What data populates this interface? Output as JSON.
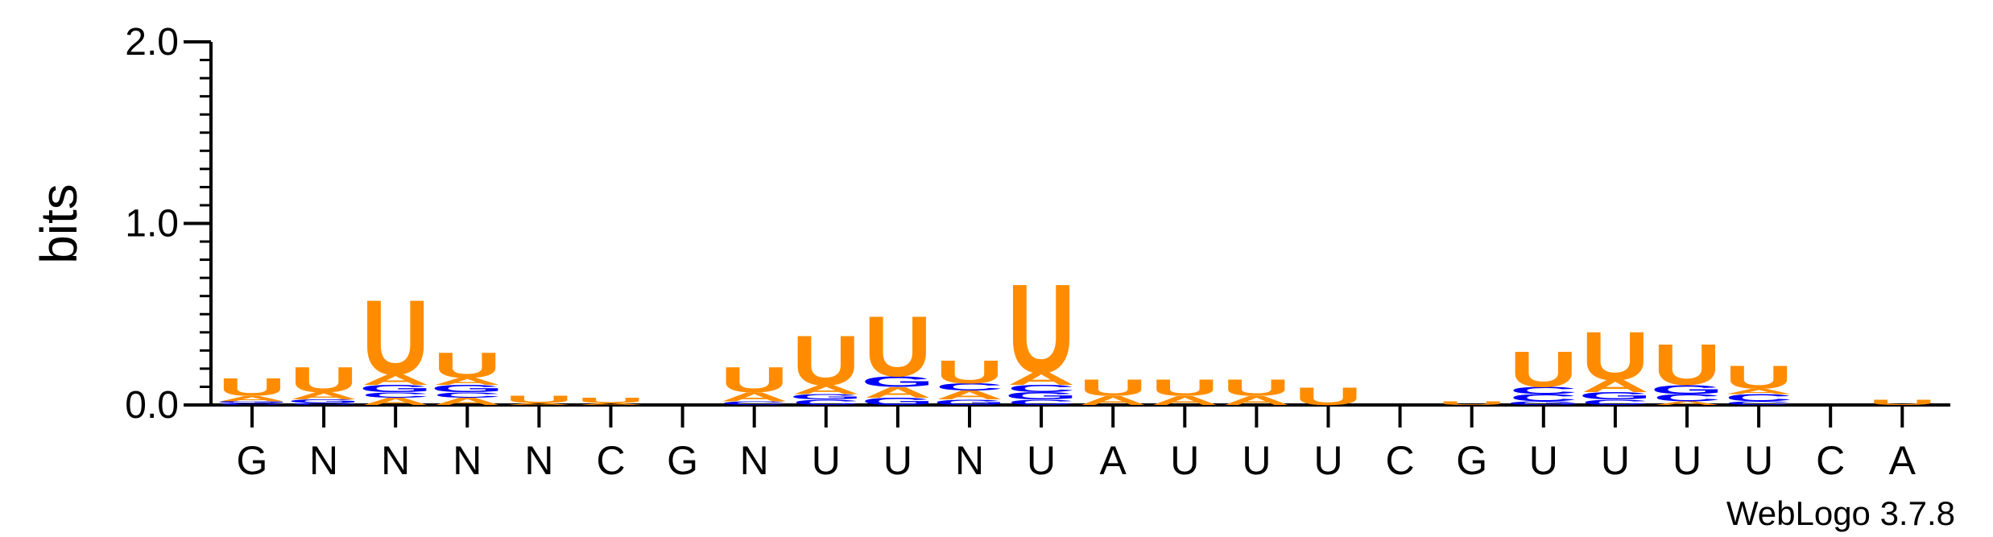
{
  "credit": "WebLogo 3.7.8",
  "colors": {
    "U": "#ff8c00",
    "A": "#ff8c00",
    "C": "#0000ff",
    "G": "#0000ff",
    "axis": "#000000"
  },
  "chart_data": {
    "type": "sequence-logo",
    "ylabel": "bits",
    "ylim": [
      0,
      2.0
    ],
    "yticks": [
      "0.0",
      "1.0",
      "2.0"
    ],
    "x_tick_labels": [
      "G",
      "N",
      "N",
      "N",
      "N",
      "C",
      "G",
      "N",
      "U",
      "U",
      "N",
      "U",
      "A",
      "U",
      "U",
      "U",
      "C",
      "G",
      "U",
      "U",
      "U",
      "U",
      "C",
      "A"
    ],
    "stacks": [
      [
        [
          "C",
          0.01
        ],
        [
          "G",
          0.01
        ],
        [
          "A",
          0.03
        ],
        [
          "U",
          0.1
        ]
      ],
      [
        [
          "C",
          0.01
        ],
        [
          "G",
          0.02
        ],
        [
          "A",
          0.04
        ],
        [
          "U",
          0.14
        ]
      ],
      [
        [
          "A",
          0.04
        ],
        [
          "C",
          0.03
        ],
        [
          "G",
          0.04
        ],
        [
          "A",
          0.06
        ],
        [
          "U",
          0.42
        ]
      ],
      [
        [
          "A",
          0.04
        ],
        [
          "C",
          0.03
        ],
        [
          "G",
          0.04
        ],
        [
          "A",
          0.04
        ],
        [
          "U",
          0.14
        ]
      ],
      [
        [
          "A",
          0.01
        ],
        [
          "U",
          0.04
        ]
      ],
      [
        [
          "A",
          0.01
        ],
        [
          "U",
          0.03
        ]
      ],
      [],
      [
        [
          "C",
          0.02
        ],
        [
          "A",
          0.05
        ],
        [
          "U",
          0.14
        ]
      ],
      [
        [
          "C",
          0.03
        ],
        [
          "G",
          0.03
        ],
        [
          "A",
          0.05
        ],
        [
          "U",
          0.28
        ]
      ],
      [
        [
          "G",
          0.04
        ],
        [
          "A",
          0.06
        ],
        [
          "G",
          0.06
        ],
        [
          "U",
          0.34
        ]
      ],
      [
        [
          "G",
          0.03
        ],
        [
          "A",
          0.05
        ],
        [
          "C",
          0.04
        ],
        [
          "U",
          0.13
        ]
      ],
      [
        [
          "C",
          0.03
        ],
        [
          "G",
          0.04
        ],
        [
          "C",
          0.04
        ],
        [
          "A",
          0.07
        ],
        [
          "U",
          0.5
        ]
      ],
      [
        [
          "A",
          0.05
        ],
        [
          "U",
          0.09
        ]
      ],
      [
        [
          "A",
          0.05
        ],
        [
          "U",
          0.09
        ]
      ],
      [
        [
          "A",
          0.05
        ],
        [
          "U",
          0.09
        ]
      ],
      [
        [
          "U",
          0.1
        ]
      ],
      [],
      [
        [
          "U",
          0.02
        ]
      ],
      [
        [
          "G",
          0.02
        ],
        [
          "C",
          0.04
        ],
        [
          "C",
          0.04
        ],
        [
          "U",
          0.2
        ]
      ],
      [
        [
          "C",
          0.03
        ],
        [
          "G",
          0.04
        ],
        [
          "A",
          0.07
        ],
        [
          "U",
          0.27
        ]
      ],
      [
        [
          "A",
          0.02
        ],
        [
          "C",
          0.04
        ],
        [
          "G",
          0.05
        ],
        [
          "U",
          0.23
        ]
      ],
      [
        [
          "C",
          0.02
        ],
        [
          "C",
          0.04
        ],
        [
          "A",
          0.03
        ],
        [
          "U",
          0.13
        ]
      ],
      [],
      [
        [
          "U",
          0.03
        ]
      ]
    ]
  }
}
